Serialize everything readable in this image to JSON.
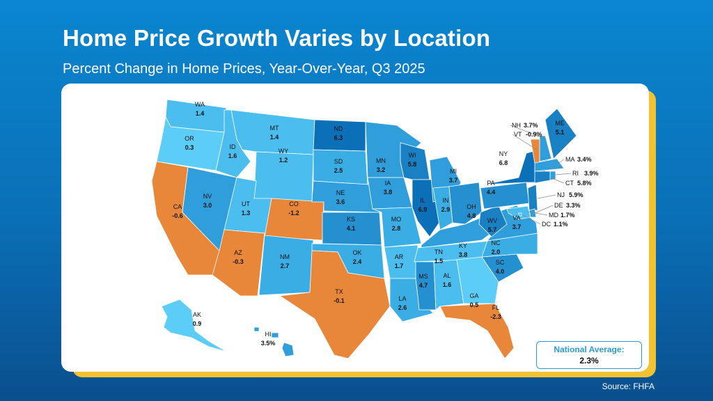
{
  "header": {
    "title": "Home Price Growth Varies by Location",
    "subtitle": "Percent Change in Home Prices, Year-Over-Year, Q3 2025"
  },
  "colors": {
    "negative": "#E8873A",
    "tier_0_1": "#5CCDF7",
    "tier_1_2": "#4BBDEE",
    "tier_2_3": "#3AAEE4",
    "tier_3_4": "#2F9EDA",
    "tier_4_5": "#2590D0",
    "tier_5_6": "#1A80C4",
    "tier_6_plus": "#0B70B8",
    "yellow_accent": "#F2C230",
    "background": "#0A78C2"
  },
  "states": [
    {
      "abbr": "WA",
      "value": "1.4"
    },
    {
      "abbr": "OR",
      "value": "0.3"
    },
    {
      "abbr": "CA",
      "value": "-0.6"
    },
    {
      "abbr": "NV",
      "value": "3.0"
    },
    {
      "abbr": "ID",
      "value": "1.6"
    },
    {
      "abbr": "MT",
      "value": "1.4"
    },
    {
      "abbr": "WY",
      "value": "1.2"
    },
    {
      "abbr": "UT",
      "value": "1.3"
    },
    {
      "abbr": "CO",
      "value": "-1.2"
    },
    {
      "abbr": "AZ",
      "value": "-0.3"
    },
    {
      "abbr": "NM",
      "value": "2.7"
    },
    {
      "abbr": "ND",
      "value": "6.3"
    },
    {
      "abbr": "SD",
      "value": "2.5"
    },
    {
      "abbr": "NE",
      "value": "3.6"
    },
    {
      "abbr": "KS",
      "value": "4.1"
    },
    {
      "abbr": "OK",
      "value": "2.4"
    },
    {
      "abbr": "TX",
      "value": "-0.1"
    },
    {
      "abbr": "MN",
      "value": "3.2"
    },
    {
      "abbr": "IA",
      "value": "3.8"
    },
    {
      "abbr": "MO",
      "value": "2.8"
    },
    {
      "abbr": "AR",
      "value": "1.7"
    },
    {
      "abbr": "LA",
      "value": "2.6"
    },
    {
      "abbr": "WI",
      "value": "5.8"
    },
    {
      "abbr": "IL",
      "value": "6.9"
    },
    {
      "abbr": "MI",
      "value": "3.7"
    },
    {
      "abbr": "IN",
      "value": "2.9"
    },
    {
      "abbr": "OH",
      "value": "4.8"
    },
    {
      "abbr": "KY",
      "value": "3.8"
    },
    {
      "abbr": "TN",
      "value": "1.5"
    },
    {
      "abbr": "MS",
      "value": "4.7"
    },
    {
      "abbr": "AL",
      "value": "1.6"
    },
    {
      "abbr": "GA",
      "value": "0.5"
    },
    {
      "abbr": "FL",
      "value": "-2.3"
    },
    {
      "abbr": "SC",
      "value": "4.0"
    },
    {
      "abbr": "NC",
      "value": "2.0"
    },
    {
      "abbr": "VA",
      "value": "3.7"
    },
    {
      "abbr": "WV",
      "value": "5.7"
    },
    {
      "abbr": "PA",
      "value": "4.4"
    },
    {
      "abbr": "NY",
      "value": "6.8"
    },
    {
      "abbr": "ME",
      "value": "5.1"
    },
    {
      "abbr": "AK",
      "value": "0.9"
    },
    {
      "abbr": "HI",
      "value": "3.5%"
    },
    {
      "abbr": "NH",
      "value": "3.7%"
    },
    {
      "abbr": "VT",
      "value": "-0.9%"
    },
    {
      "abbr": "MA",
      "value": "3.4%"
    },
    {
      "abbr": "RI",
      "value": "3.9%"
    },
    {
      "abbr": "CT",
      "value": "5.8%"
    },
    {
      "abbr": "NJ",
      "value": "5.9%"
    },
    {
      "abbr": "DE",
      "value": "3.3%"
    },
    {
      "abbr": "MD",
      "value": "1.7%"
    },
    {
      "abbr": "DC",
      "value": "1.1%"
    }
  ],
  "national_average": {
    "label": "National Average:",
    "value": "2.3%"
  },
  "source": "Source: FHFA"
}
